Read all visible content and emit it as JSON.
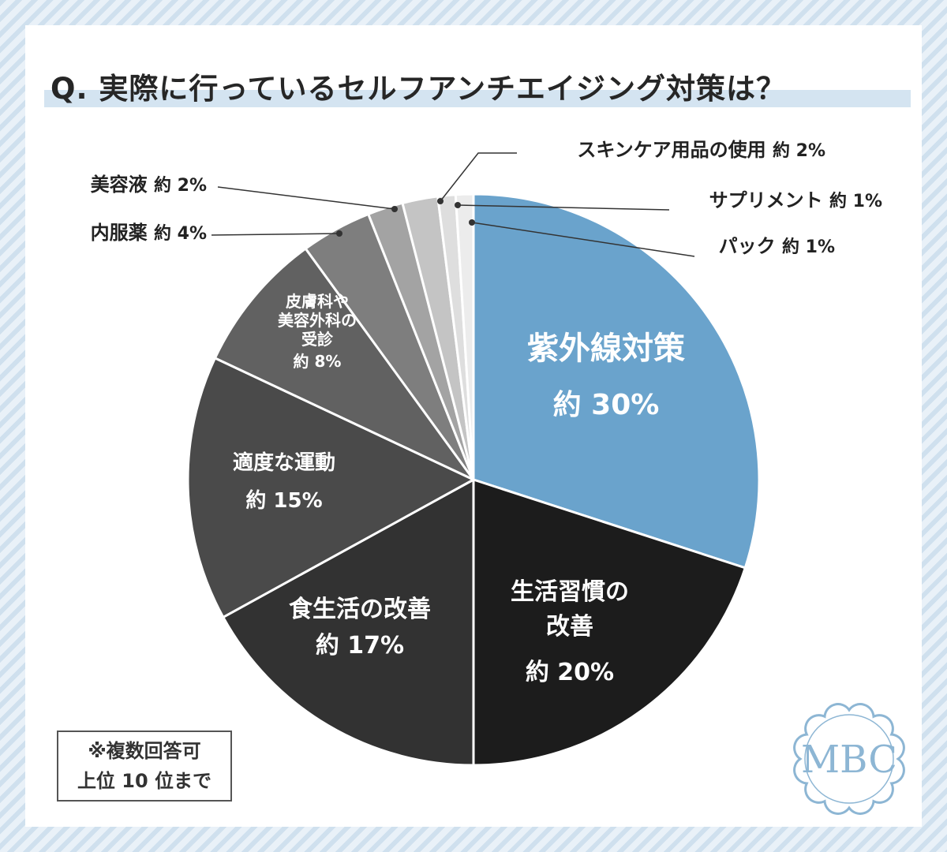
{
  "title": "Q. 実際に行っているセルフアンチエイジング対策は？",
  "note": {
    "line1": "※複数回答可",
    "line2": "上位 10 位まで"
  },
  "logo": {
    "text": "MBC",
    "color": "#8db6d4"
  },
  "chart_data": {
    "type": "pie",
    "title": "Q. 実際に行っているセルフアンチエイジング対策は？",
    "start_angle_deg": 0,
    "direction": "clockwise",
    "slices": [
      {
        "label_lines": [
          "紫外線対策"
        ],
        "value_text": "約 30%",
        "value": 30,
        "color": "#6aa3cc"
      },
      {
        "label_lines": [
          "生活習慣の",
          "改善"
        ],
        "value_text": "約 20%",
        "value": 20,
        "color": "#1c1c1c"
      },
      {
        "label_lines": [
          "食生活の改善"
        ],
        "value_text": "約 17%",
        "value": 17,
        "color": "#323232"
      },
      {
        "label_lines": [
          "適度な運動"
        ],
        "value_text": "約 15%",
        "value": 15,
        "color": "#4a4a4a"
      },
      {
        "label_lines": [
          "皮膚科や",
          "美容外科の",
          "受診"
        ],
        "value_text": "約 8%",
        "value": 8,
        "color": "#616161"
      },
      {
        "label_lines": [
          "内服薬"
        ],
        "value_text": "約 4%",
        "value": 4,
        "color": "#7e7e7e"
      },
      {
        "label_lines": [
          "美容液"
        ],
        "value_text": "約 2%",
        "value": 2,
        "color": "#a3a3a3"
      },
      {
        "label_lines": [
          "スキンケア用品の使用"
        ],
        "value_text": "約 2%",
        "value": 2,
        "color": "#c4c4c4"
      },
      {
        "label_lines": [
          "サプリメント"
        ],
        "value_text": "約 1%",
        "value": 1,
        "color": "#dedede"
      },
      {
        "label_lines": [
          "パック"
        ],
        "value_text": "約 1%",
        "value": 1,
        "color": "#ececec"
      }
    ]
  }
}
